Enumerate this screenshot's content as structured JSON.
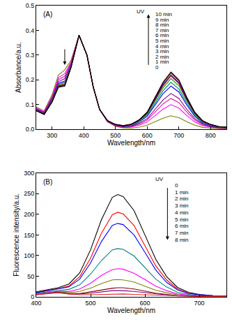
{
  "chart_data": [
    {
      "type": "line",
      "panel_label": "(A)",
      "x_label": "Wavelength/nm",
      "y_label": "Absorbance/a.u.",
      "annotation": "UV",
      "xlim": [
        250,
        850
      ],
      "xticks": [
        300,
        400,
        500,
        600,
        700,
        800
      ],
      "ylim": [
        0,
        0.5
      ],
      "yticks": [
        {
          "value": 0,
          "label": "0.0"
        },
        0.1,
        0.2,
        0.3,
        0.4,
        0.5
      ],
      "grid": false,
      "x": [
        250,
        275,
        300,
        320,
        340,
        360,
        385,
        410,
        430,
        450,
        475,
        500,
        525,
        550,
        575,
        600,
        625,
        650,
        675,
        700,
        725,
        750,
        775,
        800,
        825,
        850
      ],
      "series": [
        {
          "name": "0",
          "color": "#808000",
          "values": [
            0.09,
            0.075,
            0.14,
            0.22,
            0.24,
            0.28,
            0.38,
            0.3,
            0.17,
            0.08,
            0.03,
            0.012,
            0.006,
            0.005,
            0.009,
            0.017,
            0.031,
            0.045,
            0.055,
            0.047,
            0.031,
            0.017,
            0.008,
            0.005,
            0.003,
            0.002
          ]
        },
        {
          "name": "1 min",
          "color": "#ff00ff",
          "values": [
            0.087,
            0.072,
            0.133,
            0.209,
            0.225,
            0.273,
            0.38,
            0.3,
            0.17,
            0.08,
            0.031,
            0.014,
            0.008,
            0.009,
            0.017,
            0.03,
            0.056,
            0.082,
            0.1,
            0.086,
            0.056,
            0.03,
            0.015,
            0.009,
            0.005,
            0.004
          ]
        },
        {
          "name": "2 min",
          "color": "#d020a0",
          "values": [
            0.084,
            0.069,
            0.129,
            0.201,
            0.215,
            0.269,
            0.38,
            0.3,
            0.17,
            0.08,
            0.032,
            0.015,
            0.009,
            0.011,
            0.021,
            0.038,
            0.07,
            0.103,
            0.125,
            0.108,
            0.07,
            0.038,
            0.019,
            0.011,
            0.006,
            0.005
          ]
        },
        {
          "name": "3 min",
          "color": "#800080",
          "values": [
            0.082,
            0.067,
            0.124,
            0.193,
            0.205,
            0.264,
            0.38,
            0.3,
            0.17,
            0.08,
            0.033,
            0.016,
            0.011,
            0.013,
            0.025,
            0.044,
            0.081,
            0.119,
            0.145,
            0.125,
            0.081,
            0.044,
            0.022,
            0.012,
            0.007,
            0.006
          ]
        },
        {
          "name": "4 min",
          "color": "#0000ff",
          "values": [
            0.08,
            0.065,
            0.119,
            0.186,
            0.195,
            0.259,
            0.38,
            0.3,
            0.17,
            0.08,
            0.033,
            0.018,
            0.012,
            0.016,
            0.03,
            0.053,
            0.098,
            0.144,
            0.175,
            0.151,
            0.098,
            0.053,
            0.026,
            0.015,
            0.009,
            0.007
          ]
        },
        {
          "name": "5 min",
          "color": "#008080",
          "values": [
            0.078,
            0.063,
            0.117,
            0.182,
            0.19,
            0.257,
            0.38,
            0.3,
            0.17,
            0.08,
            0.034,
            0.018,
            0.013,
            0.017,
            0.032,
            0.057,
            0.106,
            0.156,
            0.19,
            0.163,
            0.106,
            0.057,
            0.029,
            0.016,
            0.01,
            0.008
          ]
        },
        {
          "name": "6 min",
          "color": "#00a000",
          "values": [
            0.077,
            0.062,
            0.115,
            0.178,
            0.185,
            0.255,
            0.38,
            0.3,
            0.17,
            0.08,
            0.034,
            0.019,
            0.014,
            0.018,
            0.035,
            0.062,
            0.115,
            0.168,
            0.205,
            0.176,
            0.115,
            0.062,
            0.031,
            0.018,
            0.01,
            0.008
          ]
        },
        {
          "name": "7 min",
          "color": "#ff0000",
          "values": [
            0.077,
            0.062,
            0.113,
            0.176,
            0.182,
            0.253,
            0.38,
            0.3,
            0.17,
            0.08,
            0.034,
            0.019,
            0.014,
            0.019,
            0.037,
            0.065,
            0.12,
            0.176,
            0.215,
            0.185,
            0.12,
            0.065,
            0.032,
            0.018,
            0.011,
            0.009
          ]
        },
        {
          "name": "8 min",
          "color": "#000080",
          "values": [
            0.076,
            0.061,
            0.112,
            0.174,
            0.179,
            0.252,
            0.38,
            0.3,
            0.17,
            0.08,
            0.035,
            0.019,
            0.014,
            0.02,
            0.037,
            0.066,
            0.123,
            0.18,
            0.22,
            0.189,
            0.123,
            0.066,
            0.033,
            0.019,
            0.011,
            0.009
          ]
        },
        {
          "name": "9 min",
          "color": "#800000",
          "values": [
            0.076,
            0.061,
            0.112,
            0.173,
            0.177,
            0.252,
            0.38,
            0.3,
            0.17,
            0.08,
            0.035,
            0.02,
            0.015,
            0.021,
            0.039,
            0.068,
            0.128,
            0.187,
            0.228,
            0.196,
            0.128,
            0.068,
            0.034,
            0.02,
            0.011,
            0.009
          ]
        },
        {
          "name": "10 min",
          "color": "#000000",
          "values": [
            0.075,
            0.06,
            0.11,
            0.17,
            0.175,
            0.25,
            0.38,
            0.3,
            0.17,
            0.08,
            0.035,
            0.02,
            0.015,
            0.021,
            0.039,
            0.07,
            0.13,
            0.19,
            0.232,
            0.2,
            0.13,
            0.07,
            0.035,
            0.02,
            0.012,
            0.009
          ]
        }
      ]
    },
    {
      "type": "line",
      "panel_label": "(B)",
      "x_label": "Wavelength/nm",
      "y_label": "Fluorescence intensity/a.u.",
      "annotation": "UV",
      "xlim": [
        400,
        750
      ],
      "xticks": [
        400,
        500,
        600,
        700
      ],
      "ylim": [
        0,
        300
      ],
      "yticks": [
        0,
        50,
        100,
        150,
        200,
        250,
        300
      ],
      "grid": false,
      "x": [
        400,
        425,
        440,
        460,
        480,
        500,
        520,
        540,
        550,
        560,
        580,
        600,
        620,
        640,
        660,
        680,
        700,
        725,
        750
      ],
      "series": [
        {
          "name": "0",
          "color": "#000000",
          "values": [
            12,
            18,
            22,
            31,
            58,
            114,
            187,
            241,
            248,
            243,
            209,
            150,
            91,
            49,
            23,
            11,
            6,
            3,
            2
          ]
        },
        {
          "name": "1 min",
          "color": "#ff0000",
          "values": [
            11,
            16,
            20,
            26,
            49,
            94,
            154,
            199,
            205,
            201,
            173,
            124,
            75,
            41,
            19,
            9,
            5,
            3,
            2
          ]
        },
        {
          "name": "2 min",
          "color": "#0000ff",
          "values": [
            10,
            15,
            19,
            24,
            43,
            82,
            134,
            173,
            178,
            175,
            150,
            108,
            65,
            35,
            17,
            8,
            5,
            3,
            2
          ]
        },
        {
          "name": "3 min",
          "color": "#008080",
          "values": [
            9,
            13,
            16,
            18,
            29,
            55,
            88,
            114,
            117,
            115,
            99,
            71,
            43,
            24,
            11,
            6,
            3,
            2,
            2
          ]
        },
        {
          "name": "4 min",
          "color": "#ff00ff",
          "values": [
            7,
            11,
            13,
            13,
            19,
            33,
            52,
            66,
            68,
            67,
            57,
            42,
            26,
            15,
            7,
            4,
            2,
            2,
            1
          ]
        },
        {
          "name": "5 min",
          "color": "#808000",
          "values": [
            6,
            10,
            12,
            10,
            13,
            21,
            32,
            41,
            42,
            41,
            36,
            26,
            16,
            10,
            5,
            3,
            2,
            1,
            1
          ]
        },
        {
          "name": "6 min",
          "color": "#800000",
          "values": [
            6,
            9,
            11,
            8,
            8,
            12,
            17,
            21,
            22,
            22,
            19,
            14,
            9,
            6,
            3,
            2,
            1,
            1,
            1
          ]
        },
        {
          "name": "7 min",
          "color": "#800080",
          "values": [
            5,
            9,
            11,
            7,
            7,
            9,
            12,
            15,
            15,
            15,
            13,
            10,
            7,
            5,
            2,
            2,
            1,
            1,
            1
          ]
        },
        {
          "name": "8 min",
          "color": "#e03030",
          "values": [
            5,
            8,
            10,
            7,
            5,
            5,
            6,
            7,
            7,
            7,
            6,
            5,
            4,
            3,
            2,
            1,
            1,
            1,
            1
          ]
        }
      ]
    }
  ]
}
